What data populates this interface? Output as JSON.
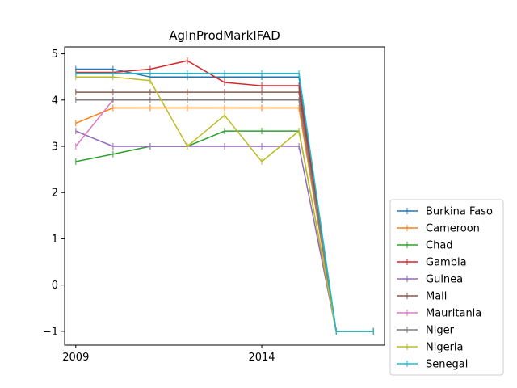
{
  "chart_data": {
    "type": "line",
    "title": "AgInProdMarkIFAD",
    "xlabel": "",
    "ylabel": "",
    "x": [
      2009,
      2010,
      2011,
      2012,
      2013,
      2014,
      2015,
      2016,
      2017
    ],
    "xlim": [
      2008.7,
      2017.3
    ],
    "ylim": [
      -1.3,
      5.15
    ],
    "xticks": [
      2009,
      2014
    ],
    "yticks": [
      -1,
      0,
      1,
      2,
      3,
      4,
      5
    ],
    "ytick_labels": [
      "−1",
      "0",
      "1",
      "2",
      "3",
      "4",
      "5"
    ],
    "grid": false,
    "legend_position": "outside right, bottom",
    "series": [
      {
        "name": "Burkina Faso",
        "color": "#1f77b4",
        "values": [
          4.67,
          4.67,
          4.5,
          4.5,
          4.5,
          4.5,
          4.5,
          -1,
          -1
        ]
      },
      {
        "name": "Cameroon",
        "color": "#ff7f0e",
        "values": [
          3.5,
          3.83,
          3.83,
          3.83,
          3.83,
          3.83,
          3.83,
          -1,
          -1
        ]
      },
      {
        "name": "Chad",
        "color": "#2ca02c",
        "values": [
          2.67,
          2.83,
          3.0,
          3.0,
          3.33,
          3.33,
          3.33,
          -1,
          -1
        ]
      },
      {
        "name": "Gambia",
        "color": "#d62728",
        "values": [
          4.6,
          4.6,
          4.67,
          4.85,
          4.38,
          4.31,
          4.31,
          -1,
          -1
        ]
      },
      {
        "name": "Guinea",
        "color": "#9467bd",
        "values": [
          3.33,
          3.0,
          3.0,
          3.0,
          3.0,
          3.0,
          3.0,
          -1,
          -1
        ]
      },
      {
        "name": "Mali",
        "color": "#8c564b",
        "values": [
          4.17,
          4.17,
          4.17,
          4.17,
          4.17,
          4.17,
          4.17,
          -1,
          -1
        ]
      },
      {
        "name": "Mauritania",
        "color": "#e377c2",
        "values": [
          3.0,
          4.0,
          4.0,
          4.0,
          4.0,
          4.0,
          4.0,
          -1,
          -1
        ]
      },
      {
        "name": "Niger",
        "color": "#7f7f7f",
        "values": [
          4.0,
          4.0,
          4.0,
          4.0,
          4.0,
          4.0,
          4.0,
          -1,
          -1
        ]
      },
      {
        "name": "Nigeria",
        "color": "#bcbd22",
        "values": [
          4.5,
          4.5,
          4.42,
          3.0,
          3.67,
          2.67,
          3.33,
          -1,
          -1
        ]
      },
      {
        "name": "Senegal",
        "color": "#17becf",
        "values": [
          4.58,
          4.58,
          4.58,
          4.58,
          4.58,
          4.58,
          4.58,
          -1,
          -1
        ]
      }
    ]
  }
}
